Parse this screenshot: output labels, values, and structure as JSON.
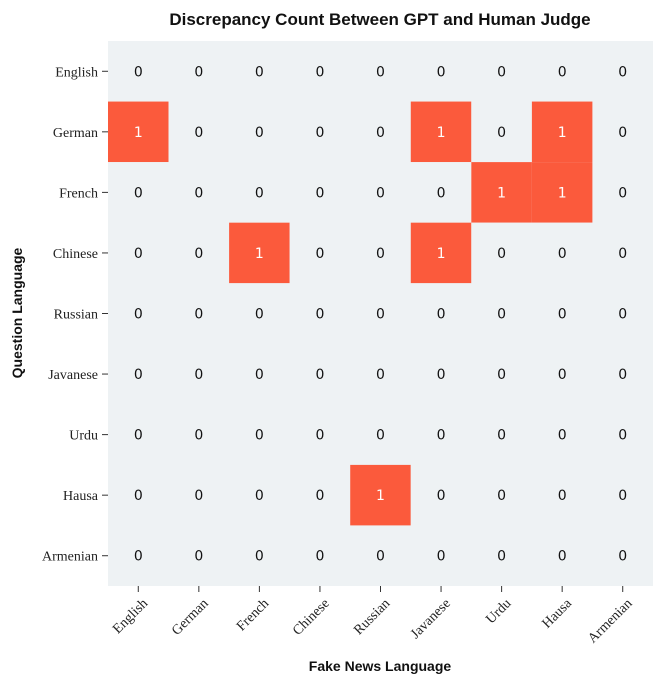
{
  "chart_data": {
    "type": "heatmap",
    "title": "Discrepancy Count Between GPT and Human Judge",
    "xlabel": "Fake News Language",
    "ylabel": "Question Language",
    "x_categories": [
      "English",
      "German",
      "French",
      "Chinese",
      "Russian",
      "Javanese",
      "Urdu",
      "Hausa",
      "Armenian"
    ],
    "y_categories": [
      "English",
      "German",
      "French",
      "Chinese",
      "Russian",
      "Javanese",
      "Urdu",
      "Hausa",
      "Armenian"
    ],
    "values": [
      [
        0,
        0,
        0,
        0,
        0,
        0,
        0,
        0,
        0
      ],
      [
        1,
        0,
        0,
        0,
        0,
        1,
        0,
        1,
        0
      ],
      [
        0,
        0,
        0,
        0,
        0,
        0,
        1,
        1,
        0
      ],
      [
        0,
        0,
        1,
        0,
        0,
        1,
        0,
        0,
        0
      ],
      [
        0,
        0,
        0,
        0,
        0,
        0,
        0,
        0,
        0
      ],
      [
        0,
        0,
        0,
        0,
        0,
        0,
        0,
        0,
        0
      ],
      [
        0,
        0,
        0,
        0,
        0,
        0,
        0,
        0,
        0
      ],
      [
        0,
        0,
        0,
        0,
        1,
        0,
        0,
        0,
        0
      ],
      [
        0,
        0,
        0,
        0,
        0,
        0,
        0,
        0,
        0
      ]
    ],
    "colors": {
      "zero": "#eef2f4",
      "one": "#fb5a3c",
      "zero_text": "#111111",
      "one_text": "#ffffff"
    },
    "grid": false
  }
}
